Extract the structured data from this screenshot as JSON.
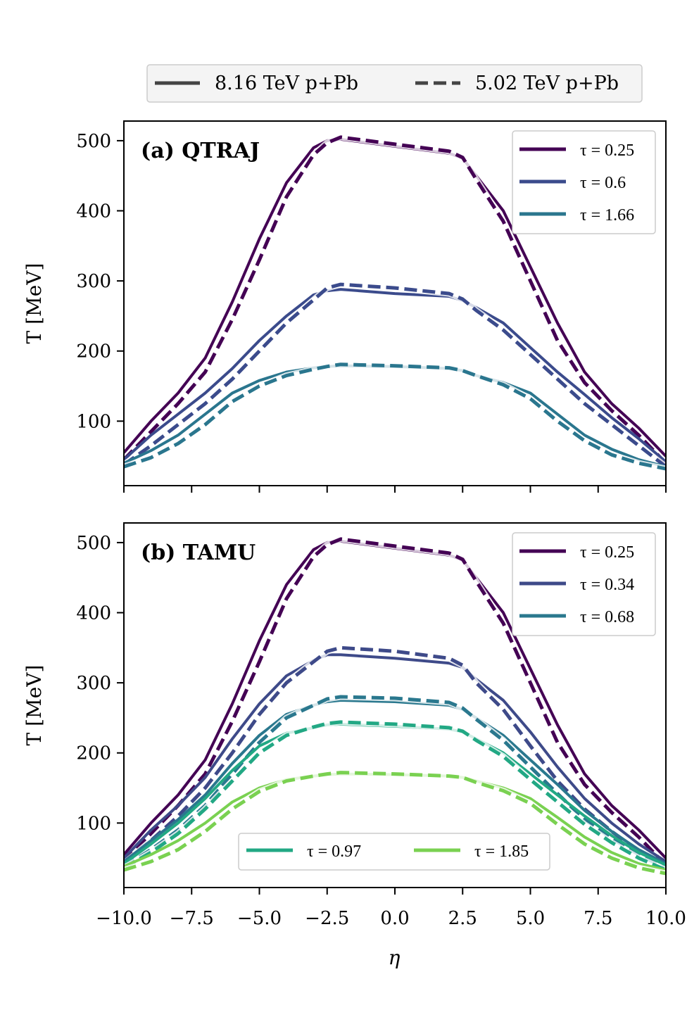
{
  "chart_data": [
    {
      "type": "line",
      "title": "(a) QTRAJ",
      "xlabel": "η",
      "ylabel": "T [MeV]",
      "xlim": [
        -10,
        10
      ],
      "ylim": [
        8,
        528
      ],
      "yticks": [
        100,
        200,
        300,
        400,
        500
      ],
      "x": [
        -10,
        -9,
        -8,
        -7,
        -6,
        -5,
        -4,
        -3,
        -2.5,
        -2,
        0,
        2,
        2.5,
        3,
        4,
        5,
        6,
        7,
        8,
        9,
        10
      ],
      "series": [
        {
          "name": "τ = 0.25",
          "label_tau": "τ = 0.25",
          "energy": "8.16 TeV p+Pb",
          "color": "#440154",
          "values": [
            55,
            100,
            140,
            190,
            270,
            360,
            440,
            490,
            500,
            502,
            492,
            482,
            475,
            450,
            400,
            320,
            240,
            170,
            125,
            90,
            50
          ]
        },
        {
          "name": "τ = 0.25",
          "energy": "5.02 TeV p+Pb",
          "color": "#440154",
          "values": [
            45,
            85,
            125,
            170,
            245,
            330,
            420,
            480,
            497,
            505,
            495,
            485,
            476,
            445,
            385,
            300,
            215,
            155,
            115,
            80,
            40
          ]
        },
        {
          "name": "τ = 0.6",
          "label_tau": "τ = 0.6",
          "energy": "8.16 TeV p+Pb",
          "color": "#3b4b8c",
          "values": [
            45,
            80,
            110,
            140,
            175,
            215,
            250,
            280,
            286,
            288,
            282,
            278,
            272,
            262,
            240,
            205,
            170,
            138,
            105,
            75,
            42
          ]
        },
        {
          "name": "τ = 0.6",
          "energy": "5.02 TeV p+Pb",
          "color": "#3b4b8c",
          "values": [
            38,
            65,
            95,
            125,
            160,
            200,
            240,
            273,
            290,
            295,
            290,
            282,
            274,
            258,
            230,
            195,
            160,
            125,
            95,
            65,
            35
          ]
        },
        {
          "name": "τ = 1.66",
          "label_tau": "τ = 1.66",
          "energy": "8.16 TeV p+Pb",
          "color": "#2a768e",
          "values": [
            40,
            58,
            80,
            110,
            140,
            158,
            170,
            176,
            178,
            179,
            178,
            175,
            172,
            165,
            155,
            140,
            110,
            80,
            60,
            45,
            35
          ]
        },
        {
          "name": "τ = 1.66",
          "energy": "5.02 TeV p+Pb",
          "color": "#2a768e",
          "values": [
            35,
            48,
            68,
            95,
            128,
            150,
            165,
            174,
            178,
            181,
            179,
            176,
            172,
            165,
            152,
            132,
            100,
            72,
            52,
            40,
            32
          ]
        }
      ]
    },
    {
      "type": "line",
      "title": "(b) TAMU",
      "xlabel": "η",
      "ylabel": "T [MeV]",
      "xlim": [
        -10,
        10
      ],
      "ylim": [
        8,
        528
      ],
      "yticks": [
        100,
        200,
        300,
        400,
        500
      ],
      "xticks": [
        -10,
        -7.5,
        -5,
        -2.5,
        0,
        2.5,
        5,
        7.5,
        10
      ],
      "xticklabels": [
        "−10.0",
        "−7.5",
        "−5.0",
        "−2.5",
        "0.0",
        "2.5",
        "5.0",
        "7.5",
        "10.0"
      ],
      "x": [
        -10,
        -9,
        -8,
        -7,
        -6,
        -5,
        -4,
        -3,
        -2.5,
        -2,
        0,
        2,
        2.5,
        3,
        4,
        5,
        6,
        7,
        8,
        9,
        10
      ],
      "series": [
        {
          "name": "τ = 0.25",
          "label_tau": "τ = 0.25",
          "energy": "8.16 TeV p+Pb",
          "color": "#440154",
          "values": [
            55,
            100,
            140,
            190,
            270,
            360,
            440,
            490,
            500,
            502,
            492,
            482,
            475,
            450,
            400,
            320,
            240,
            170,
            125,
            90,
            50
          ]
        },
        {
          "name": "τ = 0.25",
          "energy": "5.02 TeV p+Pb",
          "color": "#440154",
          "values": [
            45,
            85,
            125,
            170,
            245,
            330,
            420,
            480,
            497,
            505,
            495,
            485,
            476,
            445,
            385,
            300,
            215,
            155,
            115,
            80,
            40
          ]
        },
        {
          "name": "τ = 0.34",
          "label_tau": "τ = 0.34",
          "energy": "8.16 TeV p+Pb",
          "color": "#3e4a89",
          "values": [
            50,
            90,
            125,
            165,
            220,
            270,
            310,
            332,
            340,
            340,
            335,
            328,
            322,
            305,
            275,
            230,
            180,
            135,
            100,
            70,
            45
          ]
        },
        {
          "name": "τ = 0.34",
          "energy": "5.02 TeV p+Pb",
          "color": "#3e4a89",
          "values": [
            42,
            75,
            110,
            150,
            200,
            255,
            300,
            330,
            345,
            350,
            345,
            335,
            325,
            300,
            262,
            210,
            160,
            120,
            88,
            60,
            38
          ]
        },
        {
          "name": "τ = 0.68",
          "label_tau": "τ = 0.68",
          "energy": "8.16 TeV p+Pb",
          "color": "#2a788e",
          "values": [
            45,
            75,
            105,
            140,
            185,
            225,
            255,
            268,
            273,
            275,
            273,
            268,
            262,
            250,
            225,
            190,
            155,
            118,
            88,
            62,
            42
          ]
        },
        {
          "name": "τ = 0.68",
          "energy": "5.02 TeV p+Pb",
          "color": "#2a788e",
          "values": [
            38,
            62,
            90,
            125,
            170,
            215,
            250,
            268,
            277,
            280,
            278,
            272,
            264,
            248,
            218,
            180,
            142,
            105,
            78,
            55,
            35
          ]
        },
        {
          "name": "τ = 0.97",
          "label_tau": "τ = 0.97",
          "energy": "8.16 TeV p+Pb",
          "color": "#22a884",
          "values": [
            42,
            70,
            100,
            135,
            175,
            210,
            228,
            236,
            240,
            241,
            238,
            234,
            230,
            220,
            200,
            170,
            140,
            110,
            82,
            58,
            40
          ]
        },
        {
          "name": "τ = 0.97",
          "energy": "5.02 TeV p+Pb",
          "color": "#22a884",
          "values": [
            36,
            58,
            85,
            120,
            160,
            200,
            225,
            237,
            242,
            244,
            241,
            236,
            231,
            218,
            195,
            162,
            130,
            98,
            72,
            50,
            33
          ]
        },
        {
          "name": "τ = 1.85",
          "label_tau": "τ = 1.85",
          "energy": "8.16 TeV p+Pb",
          "color": "#7ad151",
          "values": [
            38,
            55,
            75,
            100,
            130,
            150,
            162,
            167,
            169,
            170,
            169,
            167,
            165,
            160,
            150,
            135,
            108,
            80,
            58,
            42,
            33
          ]
        },
        {
          "name": "τ = 1.85",
          "energy": "5.02 TeV p+Pb",
          "color": "#7ad151",
          "values": [
            33,
            45,
            62,
            88,
            120,
            145,
            160,
            167,
            170,
            172,
            170,
            167,
            165,
            158,
            146,
            128,
            98,
            70,
            50,
            36,
            28
          ]
        }
      ]
    }
  ],
  "top_legend": {
    "solid_label": "8.16 TeV p+Pb",
    "dashed_label": "5.02 TeV p+Pb"
  },
  "colors": {
    "axis": "#000000",
    "legend_bg": "#f2f2f2",
    "legend_border": "#cccccc"
  }
}
